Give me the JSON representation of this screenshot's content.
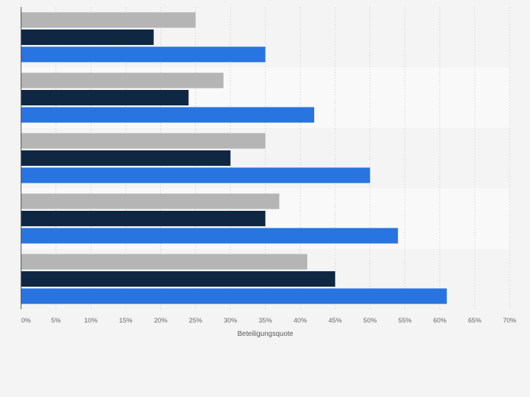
{
  "chart_data": {
    "type": "bar",
    "orientation": "horizontal",
    "title": "",
    "xlabel": "Beteiligungsquote",
    "ylabel": "",
    "xlim": [
      0,
      70
    ],
    "x_ticks": [
      0,
      5,
      10,
      15,
      20,
      25,
      30,
      35,
      40,
      45,
      50,
      55,
      60,
      65,
      70
    ],
    "tick_format": "{v}%",
    "grid": true,
    "legend": "none",
    "categories": [
      "",
      "",
      "",
      "",
      ""
    ],
    "series": [
      {
        "color": "#b5b5b5",
        "values": [
          25,
          29,
          35,
          37,
          41
        ]
      },
      {
        "color": "#0f2742",
        "values": [
          19,
          24,
          30,
          35,
          45
        ]
      },
      {
        "color": "#2874e0",
        "values": [
          35,
          42,
          50,
          54,
          61
        ]
      }
    ]
  },
  "colors": {
    "background": "#f4f4f4",
    "band_light": "#f9f9f9",
    "grid": "#dcdcdc",
    "axis": "#444444",
    "tick_text": "#666666"
  }
}
